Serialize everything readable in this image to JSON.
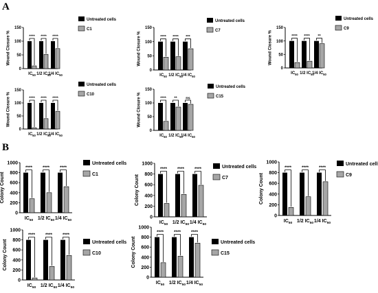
{
  "panel_labels": [
    "A",
    "B"
  ],
  "colors": {
    "untreated": "#000000",
    "treated": "#a6a6a6",
    "axis": "#000000"
  },
  "chart_data": [
    {
      "type": "bar",
      "panel": "A",
      "compound": "C1",
      "ylabel": "Wound Closure %",
      "ylim": [
        0,
        150
      ],
      "yticks": [
        0,
        50,
        100,
        150
      ],
      "categories": [
        "IC50",
        "1/2 IC50",
        "1/4 IC50"
      ],
      "series": [
        {
          "name": "Untreated cells",
          "values": [
            100,
            100,
            100
          ]
        },
        {
          "name": "C1",
          "values": [
            10,
            52,
            73
          ]
        }
      ],
      "significance": [
        "****",
        "****",
        "****"
      ],
      "legend": "top-right"
    },
    {
      "type": "bar",
      "panel": "A",
      "compound": "C7",
      "ylabel": "Wound Closure %",
      "ylim": [
        0,
        150
      ],
      "yticks": [
        0,
        50,
        100,
        150
      ],
      "categories": [
        "IC50",
        "1/2 IC50",
        "1/4 IC50"
      ],
      "series": [
        {
          "name": "Untreated cells",
          "values": [
            100,
            100,
            100
          ]
        },
        {
          "name": "C7",
          "values": [
            45,
            47,
            75
          ]
        }
      ],
      "significance": [
        "****",
        "****",
        "***"
      ],
      "legend": "top-right"
    },
    {
      "type": "bar",
      "panel": "A",
      "compound": "C9",
      "ylabel": "Wound Closure %",
      "ylim": [
        0,
        150
      ],
      "yticks": [
        0,
        50,
        100,
        150
      ],
      "categories": [
        "IC50",
        "1/2 IC50",
        "1/4 IC50"
      ],
      "series": [
        {
          "name": "Untreated cells",
          "values": [
            100,
            100,
            100
          ]
        },
        {
          "name": "C9",
          "values": [
            20,
            25,
            90
          ]
        }
      ],
      "significance": [
        "****",
        "****",
        "**"
      ],
      "legend": "top-right"
    },
    {
      "type": "bar",
      "panel": "A",
      "compound": "C10",
      "ylabel": "Wound Closure %",
      "ylim": [
        0,
        150
      ],
      "yticks": [
        0,
        50,
        100,
        150
      ],
      "categories": [
        "IC50",
        "1/2 IC50",
        "1/4 IC50"
      ],
      "series": [
        {
          "name": "Untreated cells",
          "values": [
            100,
            100,
            100
          ]
        },
        {
          "name": "C10",
          "values": [
            5,
            40,
            68
          ]
        }
      ],
      "significance": [
        "****",
        "****",
        "****"
      ],
      "legend": "top-right"
    },
    {
      "type": "bar",
      "panel": "A",
      "compound": "C15",
      "ylabel": "Wound Closure %",
      "ylim": [
        0,
        150
      ],
      "yticks": [
        0,
        50,
        100,
        150
      ],
      "categories": [
        "IC50",
        "1/2 IC50",
        "1/4 IC50"
      ],
      "series": [
        {
          "name": "Untreated cells",
          "values": [
            100,
            100,
            100
          ]
        },
        {
          "name": "C15",
          "values": [
            33,
            85,
            95
          ]
        }
      ],
      "significance": [
        "****",
        "**",
        "ns"
      ],
      "legend": "top-right"
    },
    {
      "type": "bar",
      "panel": "B",
      "compound": "C1",
      "ylabel": "Colony Count",
      "ylim": [
        0,
        1000
      ],
      "yticks": [
        0,
        200,
        400,
        600,
        800,
        1000
      ],
      "categories": [
        "IC50",
        "1/2 IC50",
        "1/4 IC50"
      ],
      "series": [
        {
          "name": "Untreated cells",
          "values": [
            800,
            800,
            800
          ]
        },
        {
          "name": "C1",
          "values": [
            280,
            400,
            520
          ]
        }
      ],
      "significance": [
        "****",
        "****",
        "****"
      ],
      "legend": "top-right"
    },
    {
      "type": "bar",
      "panel": "B",
      "compound": "C7",
      "ylabel": "Colony Count",
      "ylim": [
        0,
        1000
      ],
      "yticks": [
        0,
        200,
        400,
        600,
        800,
        1000
      ],
      "categories": [
        "IC50",
        "1/2 IC50",
        "1/4 IC50"
      ],
      "series": [
        {
          "name": "Untreated cells",
          "values": [
            800,
            800,
            800
          ]
        },
        {
          "name": "C7",
          "values": [
            250,
            420,
            590
          ]
        }
      ],
      "significance": [
        "****",
        "****",
        "****"
      ],
      "legend": "top-right"
    },
    {
      "type": "bar",
      "panel": "B",
      "compound": "C9",
      "ylabel": "Colony Count",
      "ylim": [
        0,
        1000
      ],
      "yticks": [
        0,
        200,
        400,
        600,
        800,
        1000
      ],
      "categories": [
        "IC50",
        "1/2 IC50",
        "1/4 IC50"
      ],
      "series": [
        {
          "name": "Untreated cells",
          "values": [
            800,
            800,
            800
          ]
        },
        {
          "name": "C9",
          "values": [
            150,
            350,
            630
          ]
        }
      ],
      "significance": [
        "****",
        "****",
        "****"
      ],
      "legend": "top-right"
    },
    {
      "type": "bar",
      "panel": "B",
      "compound": "C10",
      "ylabel": "Colony Count",
      "ylim": [
        0,
        1000
      ],
      "yticks": [
        0,
        200,
        400,
        600,
        800,
        1000
      ],
      "categories": [
        "IC50",
        "1/2 IC50",
        "1/4 IC50"
      ],
      "series": [
        {
          "name": "Untreated cells",
          "values": [
            800,
            800,
            800
          ]
        },
        {
          "name": "C10",
          "values": [
            40,
            270,
            490
          ]
        }
      ],
      "significance": [
        "****",
        "****",
        "****"
      ],
      "legend": "top-right"
    },
    {
      "type": "bar",
      "panel": "B",
      "compound": "C15",
      "ylabel": "Colony Count",
      "ylim": [
        0,
        1000
      ],
      "yticks": [
        0,
        200,
        400,
        600,
        800,
        1000
      ],
      "categories": [
        "IC50",
        "1/2 IC50",
        "1/4 IC50"
      ],
      "series": [
        {
          "name": "Untreated cells",
          "values": [
            800,
            800,
            800
          ]
        },
        {
          "name": "C15",
          "values": [
            290,
            420,
            680
          ]
        }
      ],
      "significance": [
        "****",
        "****",
        "****"
      ],
      "legend": "top-right"
    }
  ]
}
